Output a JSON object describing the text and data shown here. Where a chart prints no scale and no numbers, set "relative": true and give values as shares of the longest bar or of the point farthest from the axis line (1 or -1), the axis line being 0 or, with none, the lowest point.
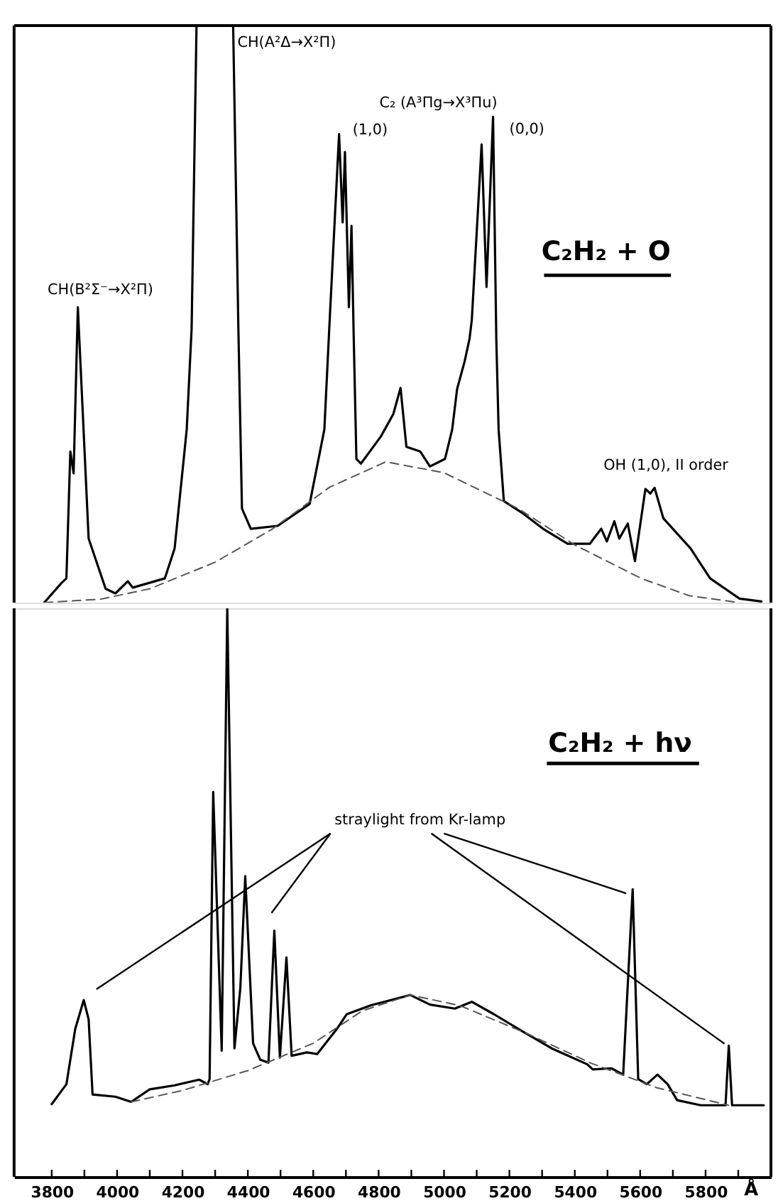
{
  "chart_data": [
    {
      "type": "line",
      "title": "C₂H₂ + O",
      "relative": true,
      "xlim": [
        3685,
        6000
      ],
      "tick_labels": false,
      "annotations": [
        {
          "text": "CH(B²Σ⁻→X²Π)",
          "x": 3880,
          "y": 0.512
        },
        {
          "text": "CH(A²Δ→X²Π)",
          "x": 4355,
          "y": 1
        },
        "C₂ (A³Πg→X³Πu)",
        {
          "text": "(1,0)",
          "x": 4679,
          "y": 0.812
        },
        {
          "text": "(0,0)",
          "x": 5150,
          "y": 0.842
        },
        {
          "text": "OH (1,0), II order",
          "x": 5631,
          "y": 0.189
        }
      ],
      "series": [
        {
          "color": "#000000",
          "x": [
            3777,
            3830,
            3845,
            3857,
            3867,
            3880,
            3913,
            3965,
            3995,
            4033,
            4048,
            4146,
            4176,
            4213,
            4228,
            4243,
            4355,
            4371,
            4382,
            4409,
            4491,
            4589,
            4634,
            4649,
            4679,
            4690,
            4697,
            4709,
            4717,
            4724,
            4732,
            4746,
            4807,
            4845,
            4867,
            4885,
            4927,
            4957,
            5003,
            5025,
            5040,
            5063,
            5078,
            5085,
            5115,
            5130,
            5150,
            5160,
            5167,
            5183,
            5243,
            5303,
            5378,
            5446,
            5481,
            5498,
            5521,
            5536,
            5562,
            5584,
            5616,
            5631,
            5644,
            5671,
            5754,
            5814,
            5904,
            5971
          ],
          "values": [
            0,
            0.034,
            0.042,
            0.262,
            0.224,
            0.512,
            0.111,
            0.024,
            0.016,
            0.037,
            0.026,
            0.042,
            0.094,
            0.3,
            0.475,
            1,
            1,
            0.475,
            0.163,
            0.128,
            0.133,
            0.171,
            0.3,
            0.475,
            0.812,
            0.659,
            0.781,
            0.512,
            0.653,
            0.455,
            0.249,
            0.241,
            0.288,
            0.327,
            0.372,
            0.27,
            0.262,
            0.236,
            0.249,
            0.3,
            0.37,
            0.418,
            0.457,
            0.49,
            0.794,
            0.547,
            0.842,
            0.455,
            0.3,
            0.176,
            0.154,
            0.128,
            0.102,
            0.102,
            0.128,
            0.106,
            0.141,
            0.111,
            0.137,
            0.072,
            0.197,
            0.189,
            0.199,
            0.146,
            0.094,
            0.042,
            0.007,
            0.002
          ]
        },
        {
          "color": "#555555",
          "line_style": "dashed",
          "x": [
            3777,
            3950,
            4100,
            4300,
            4476,
            4650,
            4822,
            5000,
            5227,
            5400,
            5603,
            5750,
            5904
          ],
          "values": [
            0,
            0.006,
            0.024,
            0.07,
            0.128,
            0.2,
            0.244,
            0.225,
            0.163,
            0.1,
            0.042,
            0.012,
            0
          ]
        }
      ]
    },
    {
      "type": "line",
      "title": "C₂H₂ + hν",
      "relative": true,
      "xlim": [
        3685,
        6000
      ],
      "tick_labels": "x",
      "xlabel": "Å",
      "xticks": [
        3800,
        {
          "value": 3900,
          "label": null
        },
        4000,
        {
          "value": 4100,
          "label": null
        },
        4200,
        {
          "value": 4300,
          "label": null
        },
        4400,
        {
          "value": 4500,
          "label": null
        },
        4600,
        {
          "value": 4700,
          "label": null
        },
        4800,
        {
          "value": 4900,
          "label": null
        },
        5000,
        {
          "value": 5100,
          "label": null
        },
        5200,
        {
          "value": 5300,
          "label": null
        },
        5400,
        {
          "value": 5500,
          "label": null
        },
        5600,
        {
          "value": 5700,
          "label": null
        },
        5800,
        {
          "value": 5900,
          "label": null
        }
      ],
      "annotations": [
        "straylight from Kr-lamp"
      ],
      "series": [
        {
          "color": "#000000",
          "x": [
            3800,
            3845,
            3872,
            3898,
            3913,
            3925,
            3995,
            4043,
            4100,
            4176,
            4251,
            4277,
            4283,
            4294,
            4320,
            4337,
            4359,
            4377,
            4392,
            4416,
            4438,
            4463,
            4481,
            4498,
            4518,
            4534,
            4581,
            4612,
            4672,
            4702,
            4777,
            4852,
            4897,
            4957,
            5033,
            5085,
            5153,
            5243,
            5333,
            5438,
            5455,
            5512,
            5548,
            5577,
            5594,
            5620,
            5653,
            5684,
            5713,
            5785,
            5861,
            5871,
            5881,
            5978
          ],
          "values": [
            0.128,
            0.163,
            0.26,
            0.311,
            0.277,
            0.145,
            0.141,
            0.132,
            0.154,
            0.161,
            0.171,
            0.163,
            0.172,
            0.677,
            0.222,
            1,
            0.226,
            0.332,
            0.529,
            0.235,
            0.206,
            0.201,
            0.433,
            0.21,
            0.386,
            0.213,
            0.219,
            0.216,
            0.26,
            0.286,
            0.302,
            0.313,
            0.32,
            0.303,
            0.296,
            0.308,
            0.286,
            0.255,
            0.225,
            0.198,
            0.189,
            0.191,
            0.18,
            0.506,
            0.172,
            0.163,
            0.18,
            0.163,
            0.135,
            0.126,
            0.126,
            0.231,
            0.126,
            0.126
          ]
        },
        {
          "color": "#555555",
          "line_style": "dashed",
          "x": [
            4043,
            4200,
            4400,
            4600,
            4750,
            4897,
            5050,
            5250,
            5450,
            5650,
            5870
          ],
          "values": [
            0.132,
            0.152,
            0.187,
            0.235,
            0.292,
            0.32,
            0.301,
            0.253,
            0.2,
            0.157,
            0.126
          ]
        }
      ]
    }
  ]
}
